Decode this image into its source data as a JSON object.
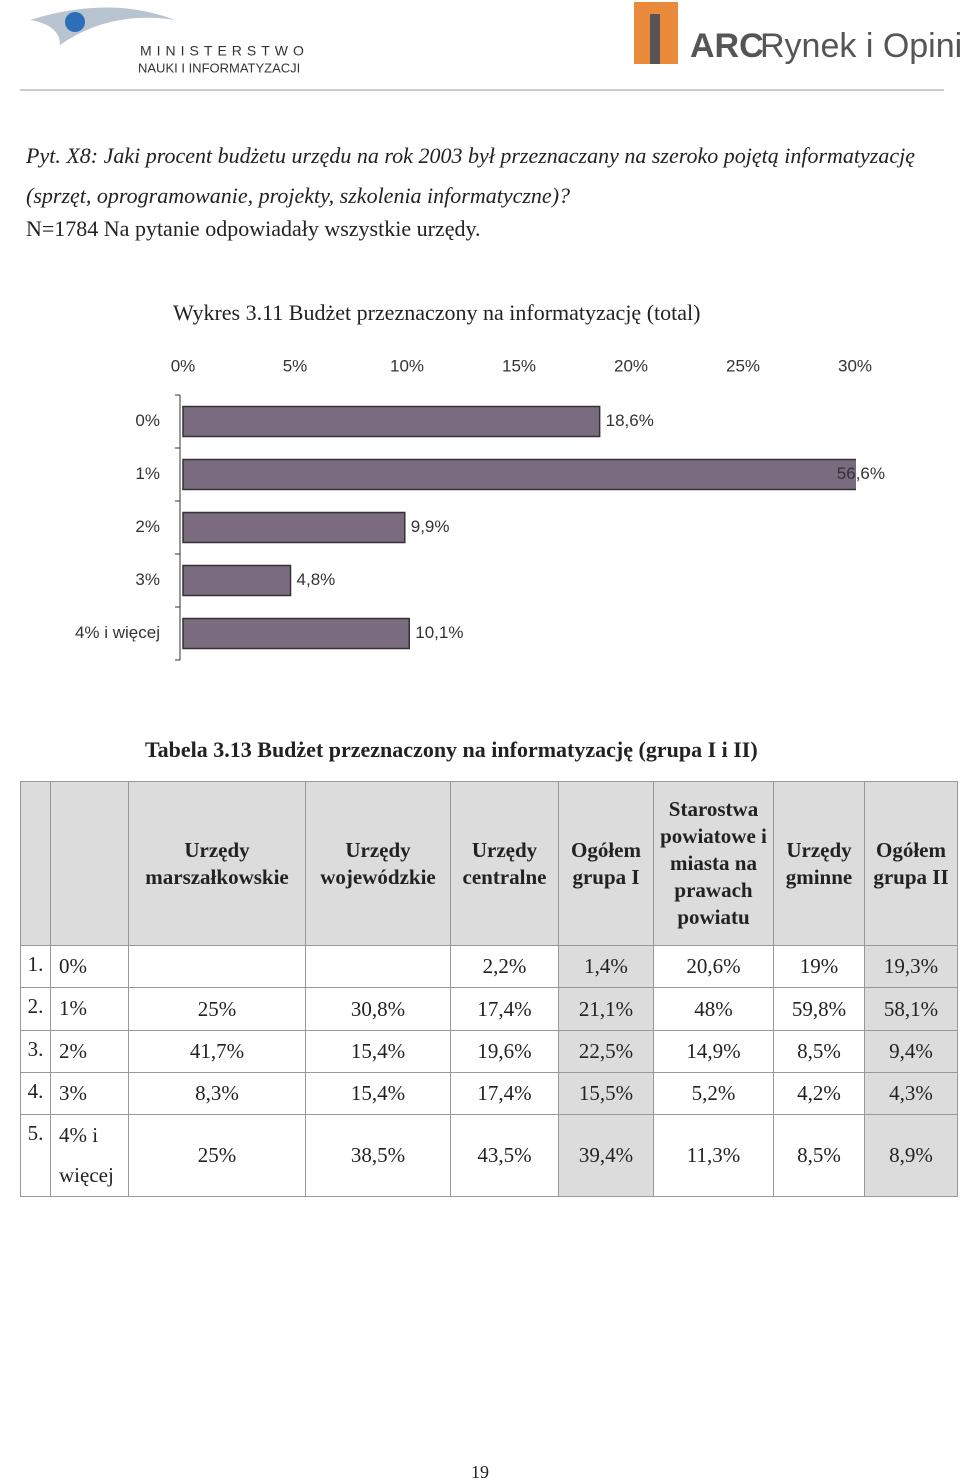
{
  "header": {
    "ministry_line1": "MINISTERSTWO",
    "ministry_line2": "NAUKI I INFORMATYZACJI",
    "arc_brand": "ARC",
    "arc_name": "Rynek i Opinia"
  },
  "question": "Pyt. X8: Jaki procent budżetu urzędu na rok 2003 był przeznaczany na szeroko pojętą informatyzację (sprzęt, oprogramowanie, projekty, szkolenia informatyczne)?",
  "note": "N=1784 Na pytanie odpowiadały wszystkie urzędy.",
  "chart_data": {
    "type": "bar",
    "orientation": "horizontal",
    "title": "Wykres 3.11 Budżet przeznaczony na informatyzację (total)",
    "categories": [
      "0%",
      "1%",
      "2%",
      "3%",
      "4% i więcej"
    ],
    "values": [
      18.6,
      56.6,
      9.9,
      4.8,
      10.1
    ],
    "value_labels": [
      "18,6%",
      "56,6%",
      "9,9%",
      "4,8%",
      "10,1%"
    ],
    "color": "#7b6b7f",
    "xlim": [
      0,
      30
    ],
    "xticks": [
      {
        "value": 0,
        "label": "0%"
      },
      {
        "value": 5,
        "label": "5%"
      },
      {
        "value": 10,
        "label": "10%"
      },
      {
        "value": 15,
        "label": "15%"
      },
      {
        "value": 20,
        "label": "20%"
      },
      {
        "value": 25,
        "label": "25%"
      },
      {
        "value": 30,
        "label": "30%"
      }
    ],
    "grid": false
  },
  "table": {
    "title": "Tabela 3.13 Budżet przeznaczony na informatyzację (grupa I i II)",
    "columns": [
      "Urzędy marszałkowskie",
      "Urzędy wojewódzkie",
      "Urzędy centralne",
      "Ogółem grupa I",
      "Starostwa powiatowe i miasta na prawach powiatu",
      "Urzędy gminne",
      "Ogółem grupa II"
    ],
    "rows": [
      {
        "number": "1.",
        "label": "0%",
        "cells": [
          null,
          null,
          "2,2%",
          "1,4%",
          "20,6%",
          "19%",
          "19,3%"
        ]
      },
      {
        "number": "2.",
        "label": "1%",
        "cells": [
          "25%",
          "30,8%",
          "17,4%",
          "21,1%",
          "48%",
          "59,8%",
          "58,1%"
        ]
      },
      {
        "number": "3.",
        "label": "2%",
        "cells": [
          "41,7%",
          "15,4%",
          "19,6%",
          "22,5%",
          "14,9%",
          "8,5%",
          "9,4%"
        ]
      },
      {
        "number": "4.",
        "label": "3%",
        "cells": [
          "8,3%",
          "15,4%",
          "17,4%",
          "15,5%",
          "5,2%",
          "4,2%",
          "4,3%"
        ]
      },
      {
        "number": "5.",
        "label": "4% i więcej",
        "cells": [
          "25%",
          "38,5%",
          "43,5%",
          "39,4%",
          "11,3%",
          "8,5%",
          "8,9%"
        ]
      }
    ]
  },
  "page_number": "19"
}
